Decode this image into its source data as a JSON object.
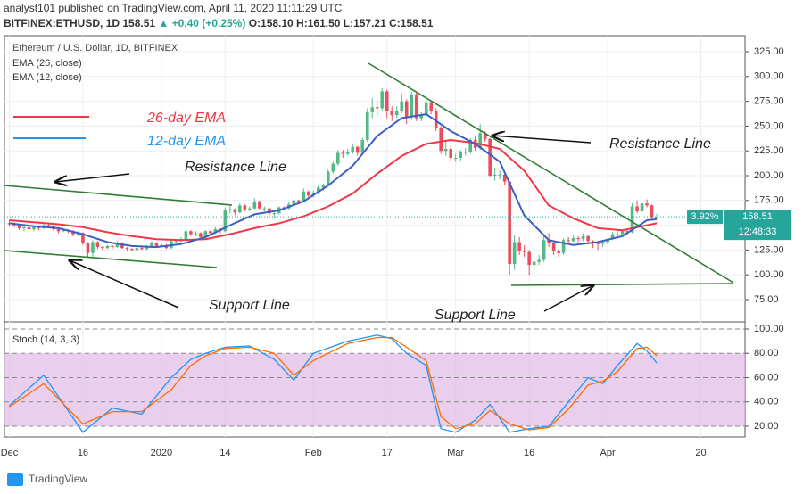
{
  "header": {
    "line1": "analyst101 published on TradingView.com, April 11, 2020 11:11:29 UTC",
    "symbol": "BITFINEX:ETHUSD, 1D",
    "price": "158.51",
    "change": "▲ +0.40 (+0.25%)",
    "ohlc": "O:158.10 H:161.50 L:157.21 C:158.51"
  },
  "footer": {
    "logo": "TradingView"
  },
  "chart_data": {
    "type": "candlestick",
    "title": "Ethereum / U.S. Dollar, 1D, BITFINEX",
    "up_color": "#53b987",
    "down_color": "#eb4d5c",
    "xlim": [
      -1,
      150
    ],
    "xticks": [
      {
        "value": 0,
        "label": "Dec"
      },
      {
        "value": 15,
        "label": "16"
      },
      {
        "value": 31,
        "label": "2020"
      },
      {
        "value": 44,
        "label": "14"
      },
      {
        "value": 62,
        "label": "Feb"
      },
      {
        "value": 77,
        "label": "17"
      },
      {
        "value": 91,
        "label": "Mar"
      },
      {
        "value": 106,
        "label": "16"
      },
      {
        "value": 122,
        "label": "Apr"
      },
      {
        "value": 141,
        "label": "20"
      }
    ],
    "ylim": [
      53.4,
      341.2
    ],
    "yticks": [
      {
        "value": 75,
        "label": "75.00"
      },
      {
        "value": 100,
        "label": "100.00"
      },
      {
        "value": 125,
        "label": "125.00"
      },
      {
        "value": 150,
        "label": "150.00"
      },
      {
        "value": 175,
        "label": "175.00"
      },
      {
        "value": 200,
        "label": "200.00"
      },
      {
        "value": 225,
        "label": "225.00"
      },
      {
        "value": 250,
        "label": "250.00"
      },
      {
        "value": 275,
        "label": "275.00"
      },
      {
        "value": 300,
        "label": "300.00"
      },
      {
        "value": 325,
        "label": "325.00"
      }
    ],
    "candles": [
      [
        152,
        155,
        149,
        151
      ],
      [
        151,
        153,
        148,
        150
      ],
      [
        150,
        151,
        145,
        147
      ],
      [
        147,
        150,
        144,
        148
      ],
      [
        148,
        149,
        143,
        146
      ],
      [
        146,
        150,
        144,
        148
      ],
      [
        148,
        150,
        145,
        147
      ],
      [
        147,
        152,
        146,
        150
      ],
      [
        150,
        152,
        147,
        149
      ],
      [
        149,
        150,
        144,
        146
      ],
      [
        146,
        147,
        142,
        144
      ],
      [
        144,
        147,
        143,
        145
      ],
      [
        145,
        146,
        142,
        144
      ],
      [
        144,
        145,
        139,
        141
      ],
      [
        141,
        144,
        139,
        142
      ],
      [
        142,
        143,
        130,
        132
      ],
      [
        132,
        133,
        117,
        122
      ],
      [
        122,
        135,
        118,
        133
      ],
      [
        133,
        134,
        126,
        128
      ],
      [
        128,
        129,
        125,
        127
      ],
      [
        127,
        130,
        126,
        129
      ],
      [
        129,
        130,
        126,
        128
      ],
      [
        128,
        134,
        127,
        132
      ],
      [
        132,
        133,
        126,
        127
      ],
      [
        127,
        128,
        124,
        126
      ],
      [
        126,
        127,
        124,
        125
      ],
      [
        125,
        128,
        124,
        127
      ],
      [
        127,
        128,
        125,
        126
      ],
      [
        126,
        130,
        125,
        128
      ],
      [
        128,
        134,
        127,
        132
      ],
      [
        132,
        133,
        128,
        129
      ],
      [
        129,
        132,
        128,
        130
      ],
      [
        130,
        131,
        126,
        127
      ],
      [
        127,
        135,
        126,
        134
      ],
      [
        134,
        136,
        132,
        134
      ],
      [
        134,
        138,
        133,
        136
      ],
      [
        136,
        146,
        135,
        144
      ],
      [
        144,
        145,
        139,
        141
      ],
      [
        141,
        144,
        139,
        142
      ],
      [
        142,
        143,
        136,
        138
      ],
      [
        138,
        145,
        137,
        144
      ],
      [
        144,
        145,
        140,
        142
      ],
      [
        142,
        148,
        141,
        146
      ],
      [
        146,
        147,
        142,
        144
      ],
      [
        144,
        168,
        143,
        165
      ],
      [
        165,
        170,
        162,
        166
      ],
      [
        166,
        167,
        160,
        163
      ],
      [
        163,
        172,
        162,
        170
      ],
      [
        170,
        171,
        164,
        166
      ],
      [
        166,
        169,
        164,
        167
      ],
      [
        167,
        177,
        166,
        174
      ],
      [
        174,
        175,
        165,
        167
      ],
      [
        167,
        169,
        164,
        167
      ],
      [
        167,
        168,
        160,
        162
      ],
      [
        162,
        164,
        158,
        162
      ],
      [
        162,
        169,
        161,
        168
      ],
      [
        168,
        169,
        165,
        167
      ],
      [
        167,
        173,
        166,
        171
      ],
      [
        171,
        177,
        170,
        175
      ],
      [
        175,
        176,
        171,
        174
      ],
      [
        174,
        187,
        173,
        184
      ],
      [
        184,
        185,
        177,
        180
      ],
      [
        180,
        185,
        178,
        183
      ],
      [
        183,
        190,
        181,
        188
      ],
      [
        188,
        192,
        185,
        190
      ],
      [
        190,
        206,
        189,
        204
      ],
      [
        204,
        215,
        202,
        212
      ],
      [
        212,
        226,
        210,
        223
      ],
      [
        223,
        226,
        218,
        222
      ],
      [
        222,
        227,
        220,
        224
      ],
      [
        224,
        232,
        222,
        229
      ],
      [
        229,
        230,
        220,
        223
      ],
      [
        223,
        238,
        221,
        236
      ],
      [
        236,
        268,
        234,
        264
      ],
      [
        264,
        278,
        258,
        269
      ],
      [
        269,
        275,
        260,
        268
      ],
      [
        268,
        288,
        265,
        285
      ],
      [
        285,
        287,
        258,
        265
      ],
      [
        265,
        270,
        255,
        261
      ],
      [
        261,
        270,
        258,
        265
      ],
      [
        265,
        283,
        263,
        275
      ],
      [
        275,
        277,
        252,
        259
      ],
      [
        259,
        285,
        256,
        282
      ],
      [
        282,
        284,
        255,
        258
      ],
      [
        258,
        264,
        255,
        261
      ],
      [
        261,
        276,
        258,
        274
      ],
      [
        274,
        276,
        262,
        265
      ],
      [
        265,
        268,
        245,
        248
      ],
      [
        248,
        250,
        222,
        225
      ],
      [
        225,
        235,
        220,
        227
      ],
      [
        227,
        230,
        215,
        218
      ],
      [
        218,
        222,
        214,
        218
      ],
      [
        218,
        226,
        215,
        224
      ],
      [
        224,
        228,
        220,
        224
      ],
      [
        224,
        238,
        222,
        236
      ],
      [
        236,
        240,
        225,
        228
      ],
      [
        228,
        252,
        226,
        243
      ],
      [
        243,
        245,
        234,
        237
      ],
      [
        237,
        238,
        198,
        200
      ],
      [
        200,
        208,
        195,
        201
      ],
      [
        201,
        205,
        196,
        201
      ],
      [
        201,
        203,
        190,
        194
      ],
      [
        194,
        195,
        100,
        111
      ],
      [
        111,
        140,
        105,
        133
      ],
      [
        133,
        138,
        120,
        124
      ],
      [
        124,
        130,
        118,
        123
      ],
      [
        123,
        125,
        100,
        110
      ],
      [
        110,
        118,
        105,
        113
      ],
      [
        113,
        120,
        110,
        115
      ],
      [
        115,
        140,
        113,
        135
      ],
      [
        135,
        142,
        128,
        132
      ],
      [
        132,
        134,
        120,
        124
      ],
      [
        124,
        126,
        118,
        122
      ],
      [
        122,
        137,
        120,
        135
      ],
      [
        135,
        138,
        131,
        134
      ],
      [
        134,
        140,
        133,
        137
      ],
      [
        137,
        139,
        133,
        136
      ],
      [
        136,
        142,
        134,
        139
      ],
      [
        139,
        140,
        131,
        134
      ],
      [
        134,
        135,
        127,
        132
      ],
      [
        132,
        134,
        125,
        131
      ],
      [
        131,
        135,
        128,
        133
      ],
      [
        133,
        137,
        131,
        136
      ],
      [
        136,
        143,
        135,
        141
      ],
      [
        141,
        145,
        138,
        141
      ],
      [
        141,
        146,
        139,
        144
      ],
      [
        144,
        145,
        140,
        143
      ],
      [
        143,
        172,
        142,
        169
      ],
      [
        169,
        175,
        162,
        164
      ],
      [
        164,
        174,
        163,
        172
      ],
      [
        172,
        176,
        168,
        170
      ],
      [
        170,
        171,
        155,
        158.1
      ],
      [
        158.1,
        161.5,
        157.21,
        158.51
      ]
    ],
    "series": [
      {
        "name": "EMA (26, close)",
        "color": "#f23645",
        "x": [
          0,
          5,
          10,
          15,
          20,
          25,
          30,
          35,
          40,
          45,
          50,
          55,
          60,
          65,
          70,
          75,
          80,
          85,
          90,
          95,
          100,
          105,
          110,
          115,
          120,
          125,
          130,
          132
        ],
        "values": [
          155,
          153,
          151,
          148,
          143,
          139,
          136,
          135,
          136,
          141,
          147,
          152,
          159,
          169,
          182,
          202,
          220,
          232,
          236,
          233,
          227,
          205,
          170,
          157,
          147,
          145,
          150,
          152
        ]
      },
      {
        "name": "EMA (12, close)",
        "color": "#3d5fc4",
        "x": [
          0,
          5,
          10,
          15,
          20,
          25,
          30,
          35,
          40,
          45,
          50,
          55,
          60,
          65,
          70,
          75,
          80,
          85,
          90,
          95,
          100,
          105,
          110,
          115,
          120,
          125,
          130,
          132
        ],
        "values": [
          152,
          149,
          147,
          141,
          133,
          129,
          128,
          131,
          138,
          150,
          161,
          165,
          174,
          190,
          210,
          240,
          258,
          262,
          245,
          232,
          214,
          160,
          135,
          130,
          133,
          139,
          155,
          156
        ]
      }
    ],
    "legend_labels": [
      "26-day EMA",
      "12-day EMA"
    ],
    "annotations": [
      "Resistance Line",
      "Resistance Line",
      "Support Line",
      "Support Line"
    ],
    "price_tag": {
      "change": "3.92%",
      "price": 158.51,
      "countdown": "12:48:33"
    },
    "stoch": {
      "title": "Stoch (14, 3, 3)",
      "ylim": [
        11.2,
        105.1
      ],
      "yticks": [
        {
          "value": 20,
          "label": "20.00"
        },
        {
          "value": 40,
          "label": "40.00"
        },
        {
          "value": 60,
          "label": "60.00"
        },
        {
          "value": 80,
          "label": "80.00"
        },
        {
          "value": 100,
          "label": "100.00"
        }
      ],
      "series": [
        {
          "color": "#2196f3",
          "x": [
            0,
            7,
            15,
            21,
            27,
            33,
            37,
            40,
            44,
            49,
            54,
            58,
            62,
            69,
            75,
            78,
            81,
            85,
            88,
            91,
            95,
            98,
            102,
            106,
            110,
            114,
            118,
            121,
            124,
            128,
            130,
            132
          ],
          "values": [
            37,
            62,
            15,
            35,
            30,
            60,
            75,
            80,
            85,
            86,
            75,
            58,
            80,
            90,
            95,
            92,
            80,
            70,
            18,
            15,
            25,
            38,
            15,
            18,
            20,
            40,
            60,
            55,
            70,
            88,
            82,
            72
          ]
        },
        {
          "color": "#ff6d00",
          "x": [
            0,
            7,
            15,
            21,
            27,
            33,
            37,
            40,
            44,
            49,
            54,
            58,
            62,
            69,
            75,
            78,
            81,
            85,
            88,
            91,
            95,
            98,
            102,
            106,
            110,
            114,
            118,
            121,
            124,
            128,
            130,
            132
          ],
          "values": [
            36,
            55,
            22,
            32,
            32,
            50,
            70,
            78,
            84,
            85,
            80,
            62,
            74,
            88,
            93,
            93,
            85,
            74,
            28,
            18,
            22,
            33,
            22,
            17,
            19,
            34,
            54,
            57,
            65,
            84,
            85,
            78
          ]
        }
      ]
    }
  }
}
